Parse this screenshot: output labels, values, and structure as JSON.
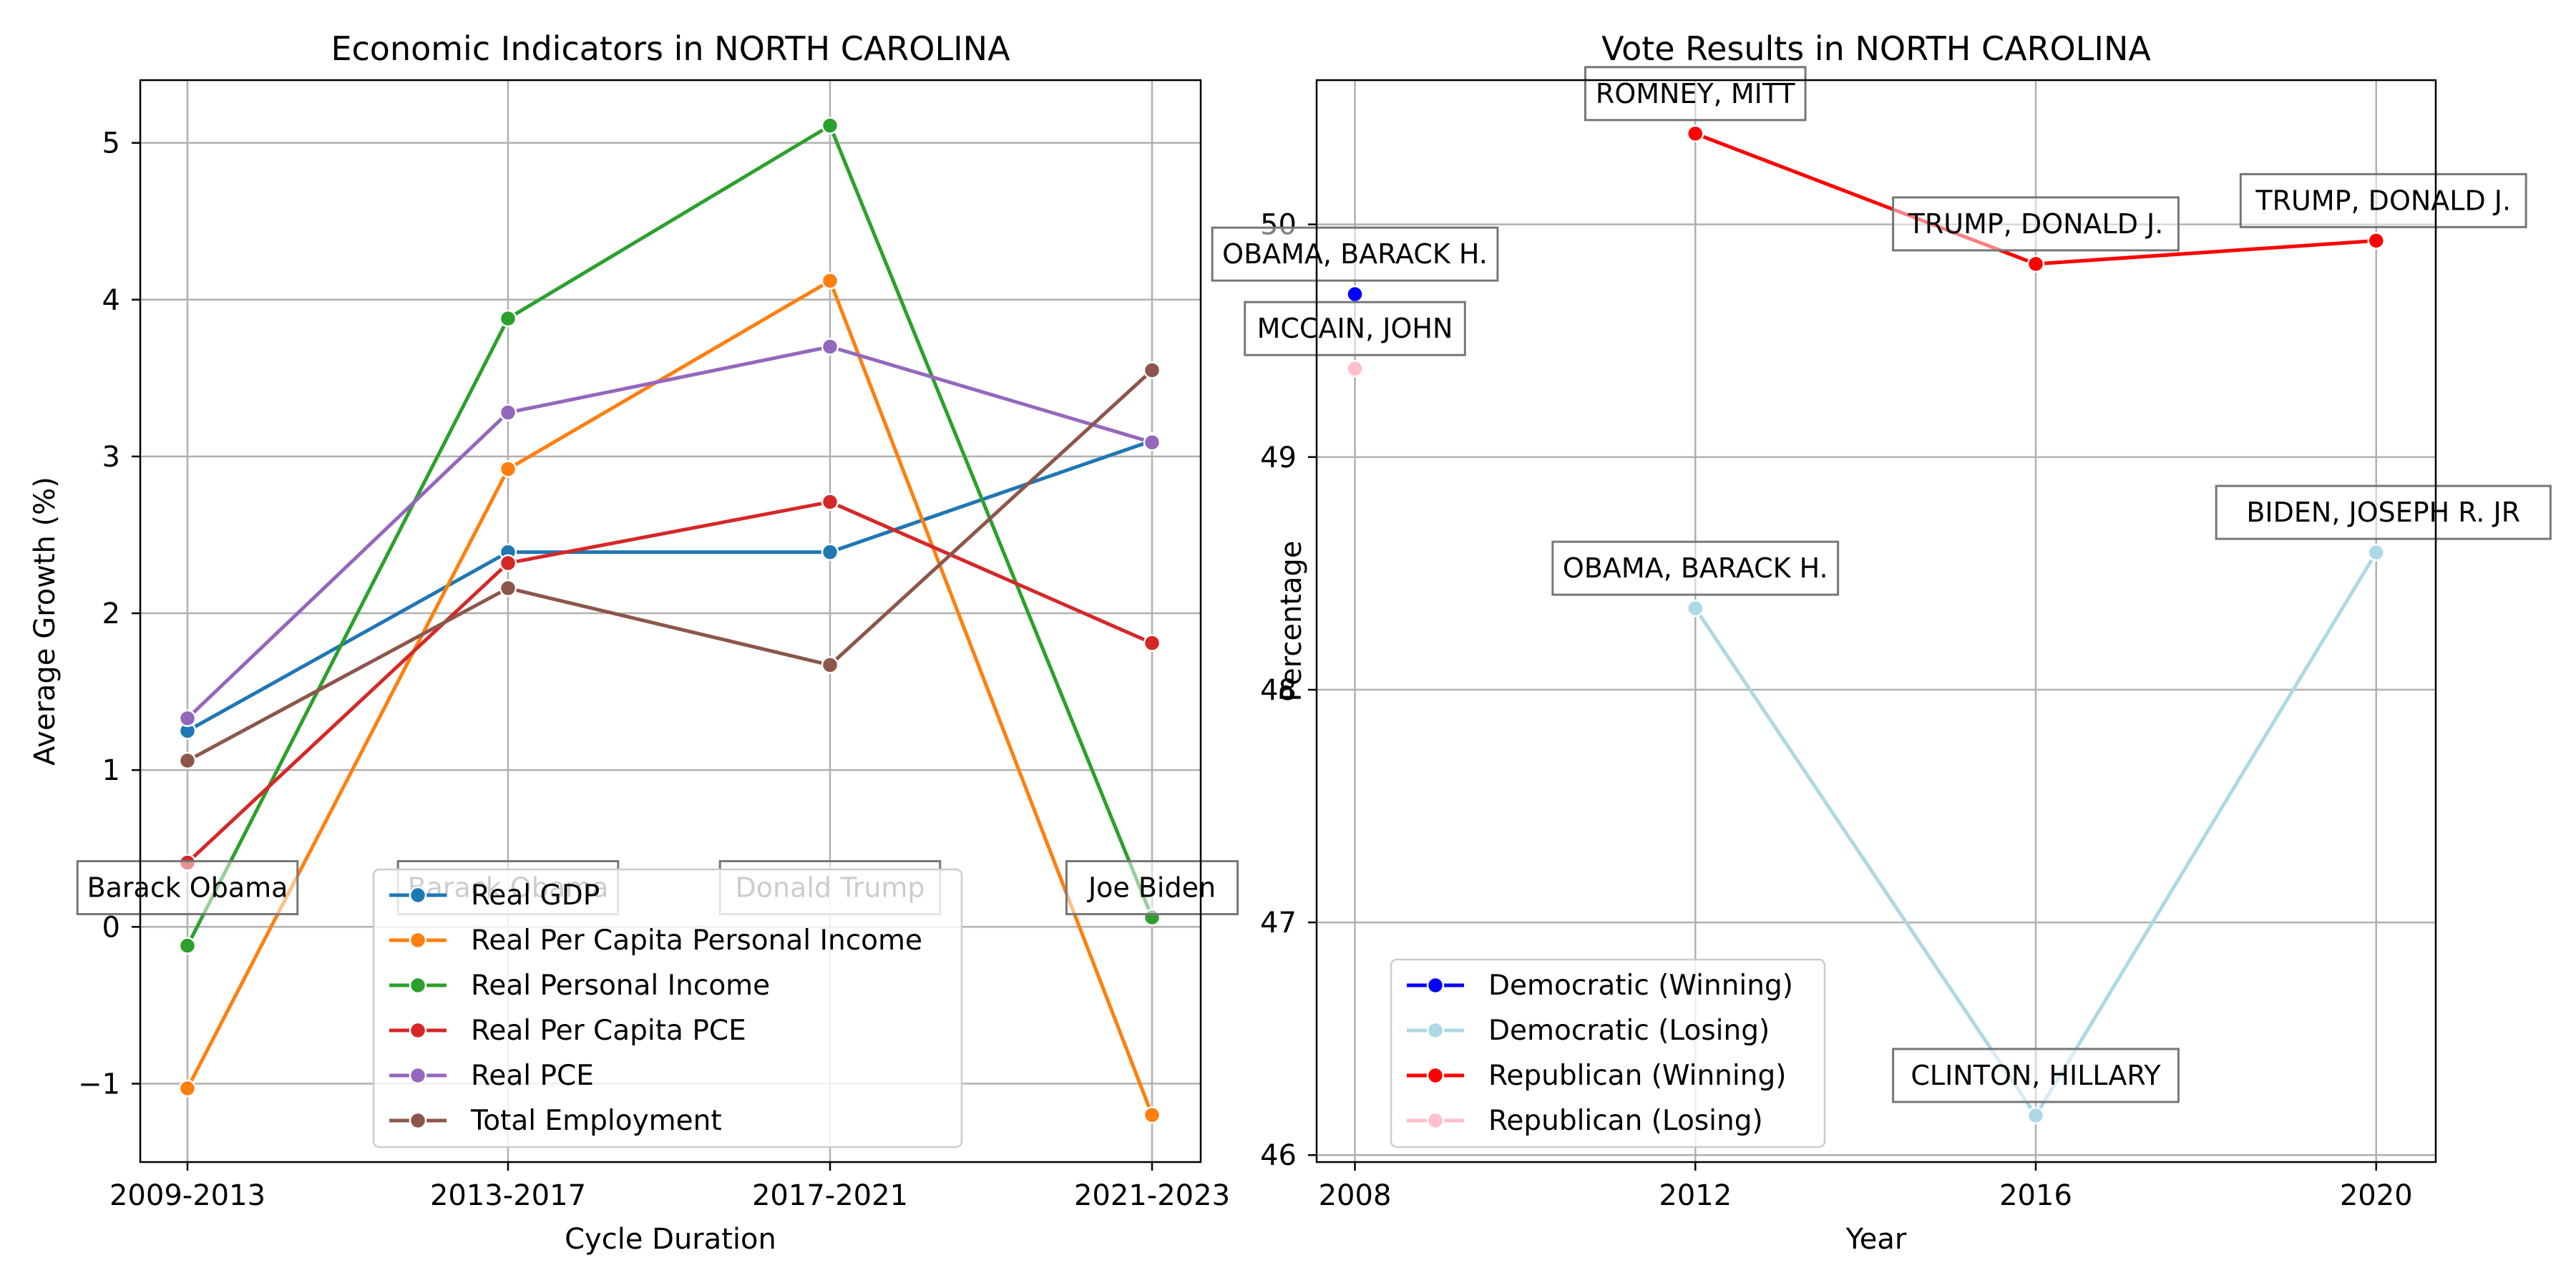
{
  "chart_data": [
    {
      "type": "line",
      "title": "Economic Indicators in NORTH CAROLINA",
      "xlabel": "Cycle Duration",
      "ylabel": "Average Growth (%)",
      "categories": [
        "2009-2013",
        "2013-2017",
        "2017-2021",
        "2021-2023"
      ],
      "ylim": [
        -1.5,
        5.4
      ],
      "yticks": [
        -1,
        0,
        1,
        2,
        3,
        4,
        5
      ],
      "ytick_labels": [
        "−1",
        "0",
        "1",
        "2",
        "3",
        "4",
        "5"
      ],
      "grid": true,
      "legend_position": "lower-center",
      "series": [
        {
          "name": "Real GDP",
          "color": "#1f77b4",
          "values": [
            1.25,
            2.39,
            2.39,
            3.1
          ]
        },
        {
          "name": "Real Per Capita Personal Income",
          "color": "#ff7f0e",
          "values": [
            -1.03,
            2.92,
            4.12,
            -1.2
          ]
        },
        {
          "name": "Real Personal Income",
          "color": "#2ca02c",
          "values": [
            -0.12,
            3.88,
            5.11,
            0.06
          ]
        },
        {
          "name": "Real Per Capita PCE",
          "color": "#d62728",
          "values": [
            0.41,
            2.32,
            2.71,
            1.81
          ]
        },
        {
          "name": "Real PCE",
          "color": "#9467bd",
          "values": [
            1.33,
            3.28,
            3.7,
            3.09
          ]
        },
        {
          "name": "Total Employment",
          "color": "#8c564b",
          "values": [
            1.06,
            2.16,
            1.67,
            3.55
          ]
        }
      ],
      "annotations": [
        {
          "text": "Barack Obama",
          "category": "2009-2013",
          "y": 0.25
        },
        {
          "text": "Barack Obama",
          "category": "2013-2017",
          "y": 0.25
        },
        {
          "text": "Donald Trump",
          "category": "2017-2021",
          "y": 0.25
        },
        {
          "text": "Joe Biden",
          "category": "2021-2023",
          "y": 0.25
        }
      ]
    },
    {
      "type": "line",
      "title": "Vote Results in NORTH CAROLINA",
      "xlabel": "Year",
      "ylabel": "Percentage",
      "x": [
        2008,
        2012,
        2016,
        2020
      ],
      "ylim": [
        45.97,
        50.62
      ],
      "yticks": [
        46,
        47,
        48,
        49,
        50
      ],
      "grid": true,
      "legend_position": "lower-left",
      "series": [
        {
          "name": "Democratic (Winning)",
          "color": "#0000ff",
          "points": [
            [
              2008,
              49.7
            ]
          ]
        },
        {
          "name": "Democratic (Losing)",
          "color": "#add8e6",
          "points": [
            [
              2012,
              48.35
            ],
            [
              2016,
              46.17
            ],
            [
              2020,
              48.59
            ]
          ]
        },
        {
          "name": "Republican (Winning)",
          "color": "#ff0000",
          "points": [
            [
              2012,
              50.39
            ],
            [
              2016,
              49.83
            ],
            [
              2020,
              49.93
            ]
          ]
        },
        {
          "name": "Republican (Losing)",
          "color": "#ffc0cb",
          "points": [
            [
              2008,
              49.38
            ]
          ]
        }
      ],
      "annotations": [
        {
          "text": "OBAMA, BARACK H.",
          "x": 2008,
          "y": 49.7
        },
        {
          "text": "MCCAIN, JOHN",
          "x": 2008,
          "y": 49.38
        },
        {
          "text": "ROMNEY, MITT",
          "x": 2012,
          "y": 50.39
        },
        {
          "text": "OBAMA, BARACK H.",
          "x": 2012,
          "y": 48.35
        },
        {
          "text": "TRUMP, DONALD J.",
          "x": 2016,
          "y": 49.83
        },
        {
          "text": "CLINTON, HILLARY",
          "x": 2016,
          "y": 46.17
        },
        {
          "text": "TRUMP, DONALD J.",
          "x": 2020,
          "y": 49.93
        },
        {
          "text": "BIDEN, JOSEPH R. JR",
          "x": 2020,
          "y": 48.59
        }
      ]
    }
  ]
}
